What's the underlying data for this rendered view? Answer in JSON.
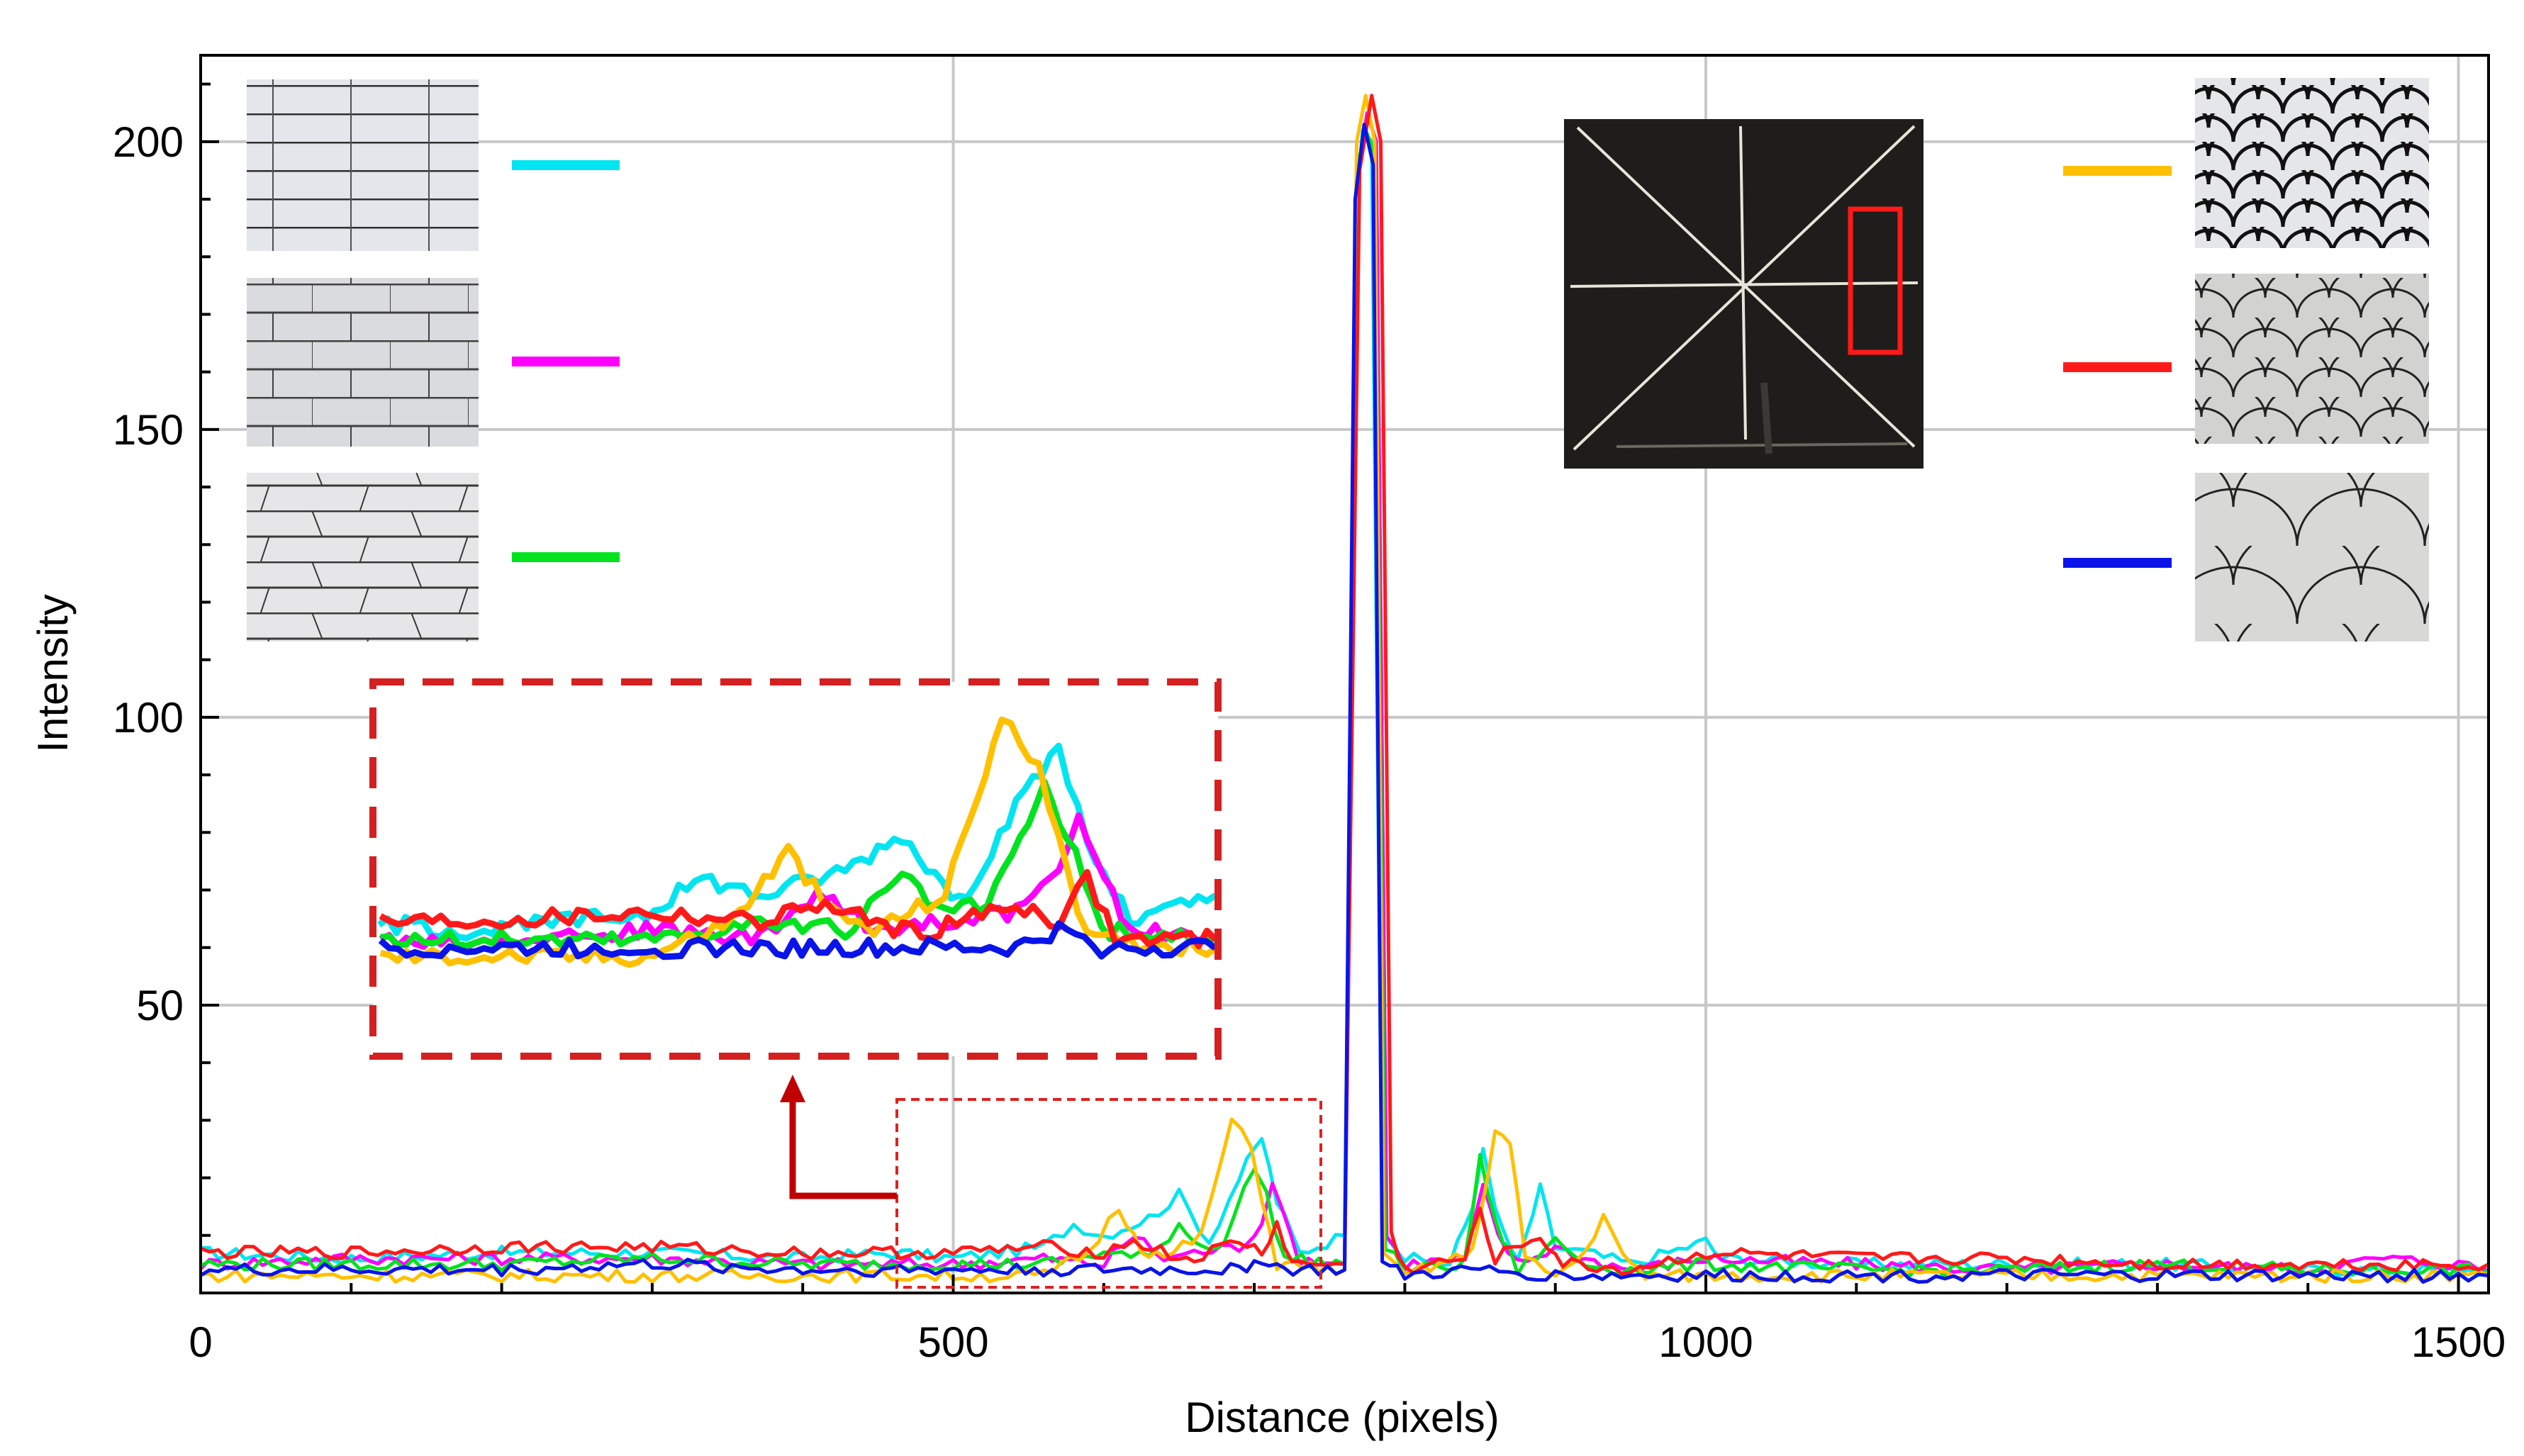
{
  "chart_data": {
    "type": "line",
    "title": "",
    "xlabel": "Distance (pixels)",
    "ylabel": "Intensity",
    "xlim": [
      0,
      1520
    ],
    "ylim": [
      0,
      215
    ],
    "xticks": [
      0,
      500,
      1000,
      1500
    ],
    "yticks": [
      50,
      100,
      150,
      200
    ],
    "grid": true,
    "legend": "line-swatches beside pattern thumbnails (left: brick patterns, right: fish-scale patterns)",
    "series": [
      {
        "color": "#00e5f0",
        "points": [
          [
            0,
            7
          ],
          [
            100,
            6
          ],
          [
            200,
            7
          ],
          [
            300,
            7
          ],
          [
            400,
            6
          ],
          [
            460,
            7
          ],
          [
            500,
            6
          ],
          [
            560,
            8
          ],
          [
            580,
            12
          ],
          [
            600,
            10
          ],
          [
            630,
            13
          ],
          [
            650,
            17
          ],
          [
            670,
            9
          ],
          [
            690,
            20
          ],
          [
            705,
            27
          ],
          [
            715,
            16
          ],
          [
            730,
            7
          ],
          [
            760,
            10
          ],
          [
            768,
            190
          ],
          [
            772,
            202
          ],
          [
            778,
            200
          ],
          [
            785,
            12
          ],
          [
            800,
            6
          ],
          [
            830,
            5
          ],
          [
            845,
            15
          ],
          [
            852,
            26
          ],
          [
            860,
            14
          ],
          [
            875,
            5
          ],
          [
            890,
            18
          ],
          [
            900,
            8
          ],
          [
            920,
            7
          ],
          [
            950,
            5
          ],
          [
            1000,
            9
          ],
          [
            1010,
            6
          ],
          [
            1100,
            5
          ],
          [
            1200,
            5
          ],
          [
            1300,
            5
          ],
          [
            1400,
            4
          ],
          [
            1500,
            4
          ],
          [
            1520,
            4
          ]
        ]
      },
      {
        "color": "#ff00ff",
        "points": [
          [
            0,
            5
          ],
          [
            100,
            6
          ],
          [
            200,
            6
          ],
          [
            300,
            6
          ],
          [
            400,
            5
          ],
          [
            500,
            5
          ],
          [
            560,
            6
          ],
          [
            600,
            5
          ],
          [
            620,
            10
          ],
          [
            640,
            6
          ],
          [
            660,
            7
          ],
          [
            690,
            8
          ],
          [
            705,
            12
          ],
          [
            712,
            20
          ],
          [
            718,
            14
          ],
          [
            730,
            6
          ],
          [
            760,
            5
          ],
          [
            769,
            195
          ],
          [
            775,
            205
          ],
          [
            781,
            200
          ],
          [
            788,
            10
          ],
          [
            800,
            5
          ],
          [
            840,
            6
          ],
          [
            852,
            18
          ],
          [
            862,
            10
          ],
          [
            875,
            5
          ],
          [
            900,
            8
          ],
          [
            920,
            6
          ],
          [
            950,
            4
          ],
          [
            1000,
            6
          ],
          [
            1100,
            5
          ],
          [
            1200,
            4
          ],
          [
            1300,
            5
          ],
          [
            1400,
            4
          ],
          [
            1450,
            6
          ],
          [
            1500,
            5
          ],
          [
            1520,
            4
          ]
        ]
      },
      {
        "color": "#00e31e",
        "points": [
          [
            0,
            5
          ],
          [
            100,
            5
          ],
          [
            200,
            5
          ],
          [
            300,
            6
          ],
          [
            400,
            5
          ],
          [
            500,
            5
          ],
          [
            560,
            5
          ],
          [
            600,
            7
          ],
          [
            630,
            6
          ],
          [
            650,
            12
          ],
          [
            665,
            8
          ],
          [
            680,
            9
          ],
          [
            700,
            22
          ],
          [
            708,
            17
          ],
          [
            720,
            6
          ],
          [
            760,
            5
          ],
          [
            768,
            195
          ],
          [
            774,
            202
          ],
          [
            780,
            198
          ],
          [
            787,
            8
          ],
          [
            800,
            4
          ],
          [
            840,
            5
          ],
          [
            850,
            24
          ],
          [
            860,
            12
          ],
          [
            875,
            4
          ],
          [
            900,
            9
          ],
          [
            920,
            5
          ],
          [
            950,
            4
          ],
          [
            1000,
            5
          ],
          [
            1100,
            4
          ],
          [
            1200,
            4
          ],
          [
            1300,
            5
          ],
          [
            1400,
            4
          ],
          [
            1500,
            4
          ],
          [
            1520,
            4
          ]
        ]
      },
      {
        "color": "#ffc000",
        "points": [
          [
            0,
            3
          ],
          [
            100,
            3
          ],
          [
            200,
            3
          ],
          [
            300,
            3
          ],
          [
            400,
            3
          ],
          [
            500,
            3
          ],
          [
            560,
            3
          ],
          [
            590,
            7
          ],
          [
            610,
            15
          ],
          [
            625,
            8
          ],
          [
            640,
            6
          ],
          [
            665,
            10
          ],
          [
            685,
            30
          ],
          [
            698,
            25
          ],
          [
            705,
            17
          ],
          [
            715,
            5
          ],
          [
            760,
            4
          ],
          [
            768,
            200
          ],
          [
            774,
            208
          ],
          [
            780,
            200
          ],
          [
            786,
            6
          ],
          [
            800,
            3
          ],
          [
            845,
            7
          ],
          [
            860,
            28
          ],
          [
            870,
            26
          ],
          [
            880,
            6
          ],
          [
            900,
            3
          ],
          [
            920,
            7
          ],
          [
            932,
            14
          ],
          [
            945,
            6
          ],
          [
            960,
            3
          ],
          [
            1000,
            3
          ],
          [
            1100,
            3
          ],
          [
            1200,
            3
          ],
          [
            1300,
            3
          ],
          [
            1400,
            3
          ],
          [
            1500,
            3
          ],
          [
            1520,
            3
          ]
        ]
      },
      {
        "color": "#ff1a1a",
        "points": [
          [
            0,
            7
          ],
          [
            100,
            7
          ],
          [
            200,
            8
          ],
          [
            300,
            8
          ],
          [
            400,
            7
          ],
          [
            500,
            7
          ],
          [
            560,
            8
          ],
          [
            600,
            7
          ],
          [
            620,
            9
          ],
          [
            650,
            6
          ],
          [
            660,
            6
          ],
          [
            690,
            9
          ],
          [
            705,
            7
          ],
          [
            715,
            12
          ],
          [
            725,
            5
          ],
          [
            760,
            5
          ],
          [
            770,
            195
          ],
          [
            778,
            208
          ],
          [
            784,
            200
          ],
          [
            791,
            10
          ],
          [
            800,
            4
          ],
          [
            840,
            6
          ],
          [
            850,
            14
          ],
          [
            860,
            6
          ],
          [
            890,
            10
          ],
          [
            905,
            5
          ],
          [
            950,
            4
          ],
          [
            1000,
            7
          ],
          [
            1100,
            6
          ],
          [
            1200,
            6
          ],
          [
            1300,
            5
          ],
          [
            1400,
            5
          ],
          [
            1500,
            5
          ],
          [
            1520,
            5
          ]
        ]
      },
      {
        "color": "#0a14e8",
        "points": [
          [
            0,
            4
          ],
          [
            100,
            4
          ],
          [
            200,
            4
          ],
          [
            300,
            5
          ],
          [
            400,
            4
          ],
          [
            500,
            4
          ],
          [
            560,
            4
          ],
          [
            600,
            4
          ],
          [
            650,
            4
          ],
          [
            690,
            4
          ],
          [
            705,
            6
          ],
          [
            720,
            4
          ],
          [
            760,
            4
          ],
          [
            767,
            190
          ],
          [
            773,
            203
          ],
          [
            779,
            196
          ],
          [
            785,
            5
          ],
          [
            800,
            3
          ],
          [
            850,
            4
          ],
          [
            900,
            3
          ],
          [
            950,
            3
          ],
          [
            1000,
            3
          ],
          [
            1100,
            3
          ],
          [
            1200,
            3
          ],
          [
            1300,
            3
          ],
          [
            1400,
            3
          ],
          [
            1500,
            3
          ],
          [
            1520,
            3
          ]
        ]
      }
    ]
  },
  "inset_legend_note": "",
  "colors": {
    "grid": "#c8c8c8",
    "axis": "#000000",
    "zoom_box": "#e02020",
    "arrow": "#c00000"
  },
  "icons": [
    "brick-pattern-1",
    "brick-pattern-2",
    "brick-pattern-3",
    "fish-scale-pattern-1",
    "fish-scale-pattern-2",
    "fish-scale-pattern-3",
    "crosshair-sample-photo"
  ]
}
